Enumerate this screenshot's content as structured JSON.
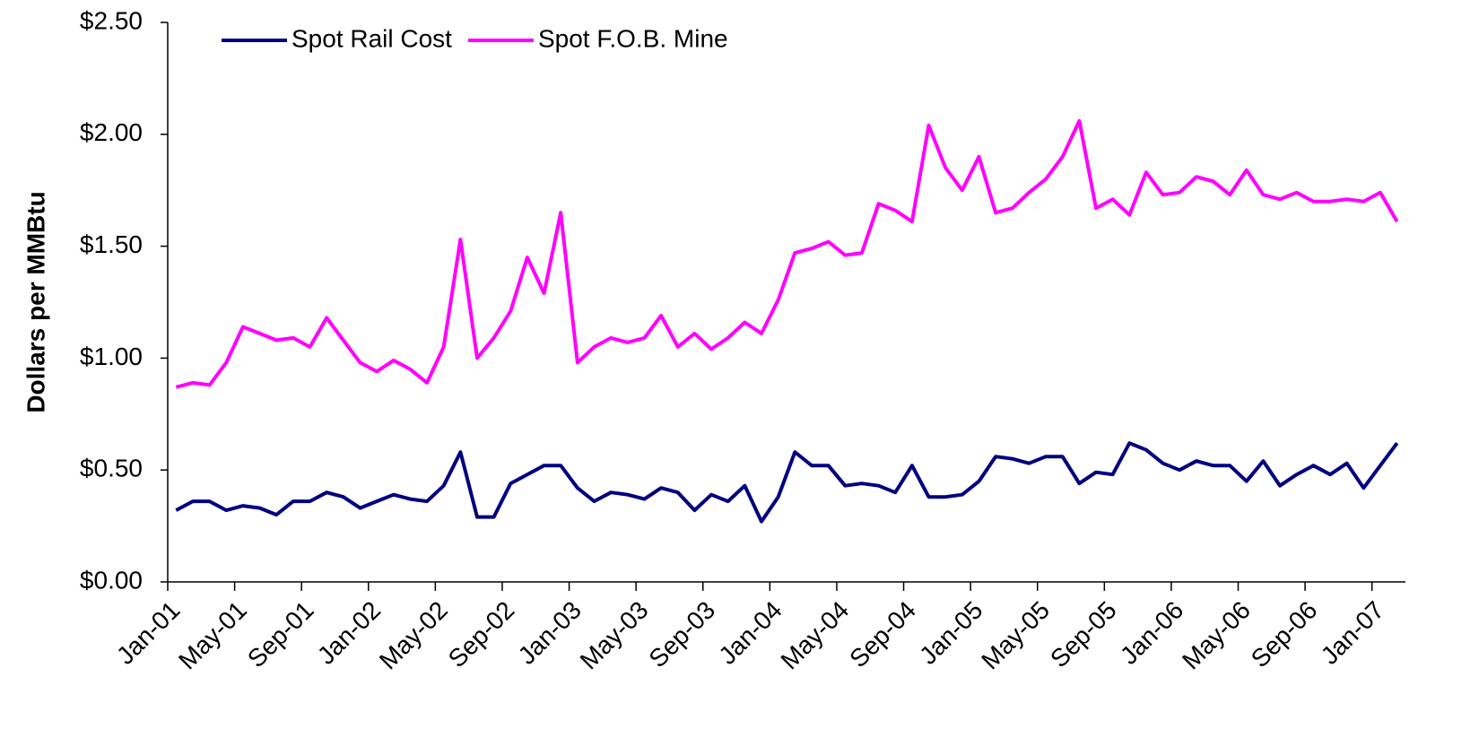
{
  "chart_data": {
    "type": "line",
    "y_label": "Dollars per MMBtu",
    "categories": [
      "Jan-01",
      null,
      null,
      null,
      "May-01",
      null,
      null,
      null,
      "Sep-01",
      null,
      null,
      null,
      "Jan-02",
      null,
      null,
      null,
      "May-02",
      null,
      null,
      null,
      "Sep-02",
      null,
      null,
      null,
      "Jan-03",
      null,
      null,
      null,
      "May-03",
      null,
      null,
      null,
      "Sep-03",
      null,
      null,
      null,
      "Jan-04",
      null,
      null,
      null,
      "May-04",
      null,
      null,
      null,
      "Sep-04",
      null,
      null,
      null,
      "Jan-05",
      null,
      null,
      null,
      "May-05",
      null,
      null,
      null,
      "Sep-05",
      null,
      null,
      null,
      "Jan-06",
      null,
      null,
      null,
      "May-06",
      null,
      null,
      null,
      "Sep-06",
      null,
      null,
      null,
      "Jan-07",
      null
    ],
    "series": [
      {
        "name": "Spot Rail Cost",
        "color": "#000080",
        "values": [
          0.32,
          0.36,
          0.36,
          0.32,
          0.34,
          0.33,
          0.3,
          0.36,
          0.36,
          0.4,
          0.38,
          0.33,
          0.36,
          0.39,
          0.37,
          0.36,
          0.43,
          0.58,
          0.29,
          0.29,
          0.44,
          0.48,
          0.52,
          0.52,
          0.42,
          0.36,
          0.4,
          0.39,
          0.37,
          0.42,
          0.4,
          0.32,
          0.39,
          0.36,
          0.43,
          0.27,
          0.38,
          0.58,
          0.52,
          0.52,
          0.43,
          0.44,
          0.43,
          0.4,
          0.52,
          0.38,
          0.38,
          0.39,
          0.45,
          0.56,
          0.55,
          0.53,
          0.56,
          0.56,
          0.44,
          0.49,
          0.48,
          0.62,
          0.59,
          0.53,
          0.5,
          0.54,
          0.52,
          0.52,
          0.45,
          0.54,
          0.43,
          0.48,
          0.52,
          0.48,
          0.53,
          0.42,
          0.52,
          0.62
        ]
      },
      {
        "name": "Spot F.O.B. Mine",
        "color": "#ff00ff",
        "values": [
          0.87,
          0.89,
          0.88,
          0.98,
          1.14,
          1.11,
          1.08,
          1.09,
          1.05,
          1.18,
          1.08,
          0.98,
          0.94,
          0.99,
          0.95,
          0.89,
          1.05,
          1.53,
          1.0,
          1.09,
          1.21,
          1.45,
          1.29,
          1.65,
          0.98,
          1.05,
          1.09,
          1.07,
          1.09,
          1.19,
          1.05,
          1.11,
          1.04,
          1.09,
          1.16,
          1.11,
          1.26,
          1.47,
          1.49,
          1.52,
          1.46,
          1.47,
          1.69,
          1.66,
          1.61,
          2.04,
          1.85,
          1.75,
          1.9,
          1.65,
          1.67,
          1.74,
          1.8,
          1.9,
          2.06,
          1.67,
          1.71,
          1.64,
          1.83,
          1.73,
          1.74,
          1.81,
          1.79,
          1.73,
          1.84,
          1.73,
          1.71,
          1.74,
          1.7,
          1.7,
          1.71,
          1.7,
          1.74,
          1.61
        ]
      }
    ],
    "ylim": [
      0,
      2.5
    ],
    "yticks": [
      {
        "value": 0,
        "label": "$0.00"
      },
      {
        "value": 0.5,
        "label": "$0.50"
      },
      {
        "value": 1,
        "label": "$1.00"
      },
      {
        "value": 1.5,
        "label": "$1.50"
      },
      {
        "value": 2,
        "label": "$2.00"
      },
      {
        "value": 2.5,
        "label": "$2.50"
      }
    ],
    "legend": "top-left"
  }
}
